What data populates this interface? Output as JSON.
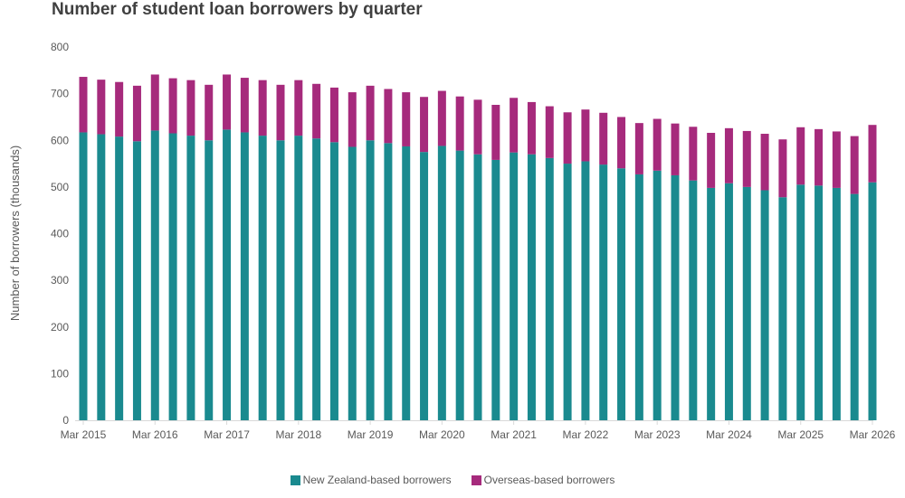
{
  "chart_data": {
    "type": "bar",
    "stacked": true,
    "title": "Number of student loan borrowers by quarter",
    "xlabel": "",
    "ylabel": "Number of borrowers (thousands)",
    "ylim": [
      0,
      800
    ],
    "yticks": [
      0,
      100,
      200,
      300,
      400,
      500,
      600,
      700,
      800
    ],
    "grid": false,
    "legend_position": "bottom",
    "x_tick_labels": [
      "Mar 2015",
      "Mar 2016",
      "Mar 2017",
      "Mar 2018",
      "Mar 2019",
      "Mar 2020",
      "Mar 2021",
      "Mar 2022",
      "Mar 2023",
      "Mar 2024",
      "Mar 2025",
      "Mar 2026"
    ],
    "categories": [
      "Mar 2015",
      "Jun 2015",
      "Sep 2015",
      "Dec 2015",
      "Mar 2016",
      "Jun 2016",
      "Sep 2016",
      "Dec 2016",
      "Mar 2017",
      "Jun 2017",
      "Sep 2017",
      "Dec 2017",
      "Mar 2018",
      "Jun 2018",
      "Sep 2018",
      "Dec 2018",
      "Mar 2019",
      "Jun 2019",
      "Sep 2019",
      "Dec 2019",
      "Mar 2020",
      "Jun 2020",
      "Sep 2020",
      "Dec 2020",
      "Mar 2021",
      "Jun 2021",
      "Sep 2021",
      "Dec 2021",
      "Mar 2022",
      "Jun 2022",
      "Sep 2022",
      "Dec 2022",
      "Mar 2023",
      "Jun 2023",
      "Sep 2023",
      "Dec 2023",
      "Mar 2024",
      "Jun 2024",
      "Sep 2024",
      "Dec 2024",
      "Mar 2025",
      "Jun 2025",
      "Sep 2025",
      "Dec 2025",
      "Mar 2026"
    ],
    "series": [
      {
        "name": "New Zealand-based borrowers",
        "color": "#1a8a8f",
        "values": [
          617,
          613,
          608,
          598,
          621,
          615,
          610,
          600,
          623,
          617,
          610,
          600,
          610,
          604,
          596,
          586,
          600,
          594,
          587,
          575,
          588,
          578,
          570,
          558,
          574,
          570,
          562,
          550,
          555,
          548,
          540,
          527,
          535,
          525,
          514,
          498,
          508,
          500,
          493,
          478,
          505,
          503,
          498,
          485,
          510
        ]
      },
      {
        "name": "Overseas-based borrowers",
        "color": "#a62a7c",
        "values": [
          119,
          117,
          117,
          119,
          120,
          118,
          119,
          119,
          118,
          117,
          119,
          119,
          119,
          117,
          117,
          117,
          117,
          116,
          116,
          118,
          118,
          116,
          117,
          118,
          117,
          112,
          111,
          110,
          111,
          111,
          110,
          110,
          111,
          111,
          115,
          118,
          118,
          120,
          121,
          124,
          123,
          121,
          121,
          124,
          123
        ]
      }
    ]
  }
}
